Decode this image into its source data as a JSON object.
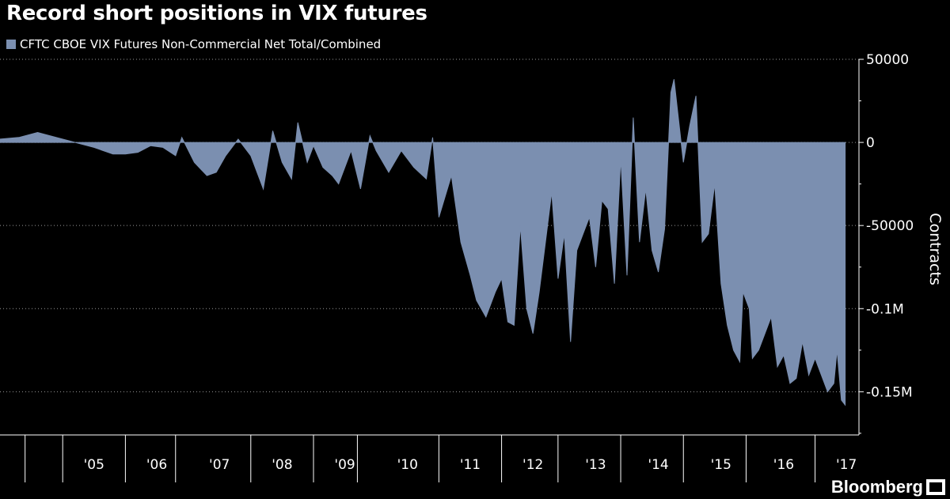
{
  "chart_data": {
    "type": "area",
    "title": "Record short positions in VIX futures",
    "ylabel": "Contracts",
    "xlabel": "",
    "legend": {
      "position": "top-left",
      "entries": [
        "CFTC CBOE VIX Futures Non-Commercial Net Total/Combined"
      ]
    },
    "color": "#7b8fb0",
    "ylim": [
      -176000,
      50000
    ],
    "xlim": [
      2004.0,
      2017.7
    ],
    "y_ticks": [
      {
        "value": 50000,
        "label": "50000"
      },
      {
        "value": 0,
        "label": "0"
      },
      {
        "value": -50000,
        "label": "-50000"
      },
      {
        "value": -100000,
        "label": "-0.1M"
      },
      {
        "value": -150000,
        "label": "-0.15M"
      }
    ],
    "x_ticks": [
      {
        "value": 2005,
        "label": "'05"
      },
      {
        "value": 2006,
        "label": "'06"
      },
      {
        "value": 2007,
        "label": "'07"
      },
      {
        "value": 2008,
        "label": "'08"
      },
      {
        "value": 2009,
        "label": "'09"
      },
      {
        "value": 2010,
        "label": "'10"
      },
      {
        "value": 2011,
        "label": "'11"
      },
      {
        "value": 2012,
        "label": "'12"
      },
      {
        "value": 2013,
        "label": "'13"
      },
      {
        "value": 2014,
        "label": "'14"
      },
      {
        "value": 2015,
        "label": "'15"
      },
      {
        "value": 2016,
        "label": "'16"
      },
      {
        "value": 2017,
        "label": "'17"
      }
    ],
    "x_bounds": [
      2004.4,
      2005.0,
      2006.0,
      2006.8,
      2008.0,
      2009.0,
      2009.7,
      2011.0,
      2012.0,
      2012.9,
      2013.9,
      2014.9,
      2015.9,
      2017.0
    ],
    "series": [
      {
        "name": "CFTC CBOE VIX Futures Non-Commercial Net Total/Combined",
        "x": [
          2004.0,
          2004.3,
          2004.6,
          2004.9,
          2005.2,
          2005.5,
          2005.8,
          2006.0,
          2006.2,
          2006.4,
          2006.6,
          2006.8,
          2006.9,
          2007.1,
          2007.3,
          2007.45,
          2007.6,
          2007.8,
          2008.0,
          2008.2,
          2008.35,
          2008.5,
          2008.65,
          2008.75,
          2008.9,
          2009.0,
          2009.15,
          2009.3,
          2009.4,
          2009.5,
          2009.6,
          2009.75,
          2009.9,
          2010.0,
          2010.2,
          2010.4,
          2010.6,
          2010.8,
          2010.9,
          2011.0,
          2011.2,
          2011.35,
          2011.5,
          2011.6,
          2011.75,
          2011.9,
          2012.0,
          2012.1,
          2012.2,
          2012.3,
          2012.4,
          2012.5,
          2012.6,
          2012.7,
          2012.8,
          2012.9,
          2013.0,
          2013.1,
          2013.2,
          2013.3,
          2013.4,
          2013.5,
          2013.6,
          2013.7,
          2013.8,
          2013.9,
          2014.0,
          2014.1,
          2014.2,
          2014.3,
          2014.4,
          2014.5,
          2014.6,
          2014.7,
          2014.75,
          2014.9,
          2015.0,
          2015.1,
          2015.2,
          2015.3,
          2015.4,
          2015.5,
          2015.6,
          2015.7,
          2015.8,
          2015.85,
          2015.95,
          2016.0,
          2016.1,
          2016.2,
          2016.3,
          2016.4,
          2016.5,
          2016.6,
          2016.7,
          2016.8,
          2016.9,
          2017.0,
          2017.1,
          2017.2,
          2017.3,
          2017.35,
          2017.42,
          2017.48
        ],
        "values": [
          2000,
          3000,
          6000,
          3000,
          0,
          -3000,
          -7000,
          -7000,
          -6000,
          -2000,
          -3000,
          -8000,
          3000,
          -12000,
          -20000,
          -18000,
          -8000,
          2000,
          -8000,
          -28000,
          7000,
          -12000,
          -22000,
          12000,
          -12000,
          -2000,
          -15000,
          -20000,
          -25000,
          -15000,
          -5000,
          -28000,
          4000,
          -5000,
          -18000,
          -5000,
          -15000,
          -22000,
          3000,
          -45000,
          -20000,
          -60000,
          -80000,
          -95000,
          -105000,
          -90000,
          -82000,
          -108000,
          -110000,
          -50000,
          -100000,
          -115000,
          -90000,
          -60000,
          -30000,
          -82000,
          -55000,
          -120000,
          -65000,
          -55000,
          -45000,
          -75000,
          -35000,
          -40000,
          -85000,
          -10000,
          -80000,
          15000,
          -60000,
          -28000,
          -65000,
          -78000,
          -52000,
          30000,
          38000,
          -12000,
          10000,
          28000,
          -60000,
          -55000,
          -25000,
          -85000,
          -110000,
          -125000,
          -132000,
          -90000,
          -100000,
          -130000,
          -125000,
          -115000,
          -105000,
          -135000,
          -128000,
          -145000,
          -142000,
          -120000,
          -140000,
          -130000,
          -140000,
          -150000,
          -145000,
          -125000,
          -155000,
          -158000
        ]
      }
    ]
  },
  "brand": {
    "name": "Bloomberg"
  }
}
